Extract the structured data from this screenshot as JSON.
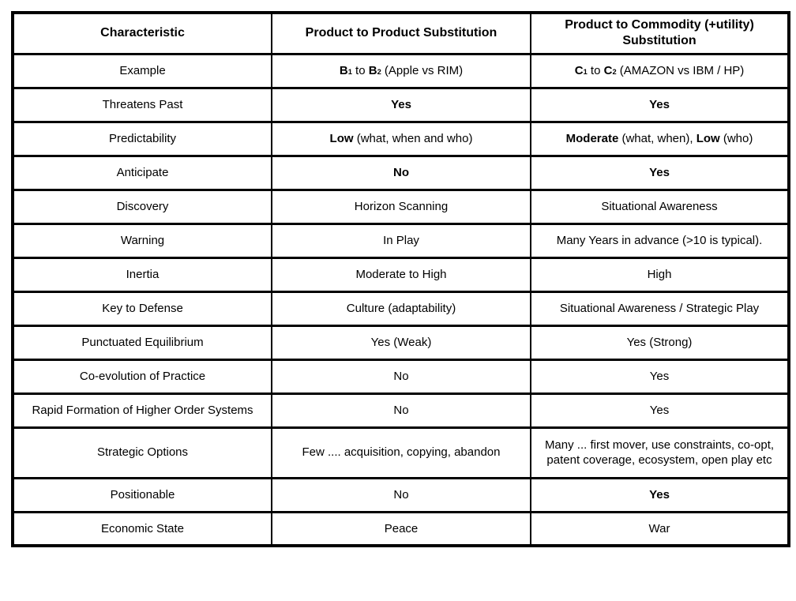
{
  "page": {
    "background_color": "#ffffff",
    "border_color": "#000000",
    "text_color": "#000000"
  },
  "table": {
    "headers": [
      "Characteristic",
      "Product to Product Substitution",
      "Product to Commodity (+utility) Substitution"
    ],
    "rows": [
      {
        "characteristic": "Example",
        "product_to_product": [
          {
            "t": "B",
            "b": true
          },
          {
            "t": "1",
            "b": true,
            "s": true
          },
          {
            "t": " to ",
            "b": false
          },
          {
            "t": "B",
            "b": true
          },
          {
            "t": "2",
            "b": true,
            "s": true
          },
          {
            "t": " (Apple vs RIM)",
            "b": false
          }
        ],
        "product_to_commodity": [
          {
            "t": "C",
            "b": true
          },
          {
            "t": "1",
            "b": true,
            "s": true
          },
          {
            "t": " to ",
            "b": false
          },
          {
            "t": "C",
            "b": true
          },
          {
            "t": "2",
            "b": true,
            "s": true
          },
          {
            "t": " (AMAZON vs IBM / HP)",
            "b": false
          }
        ]
      },
      {
        "characteristic": "Threatens Past",
        "product_to_product": [
          {
            "t": "Yes",
            "b": true
          }
        ],
        "product_to_commodity": [
          {
            "t": "Yes",
            "b": true
          }
        ]
      },
      {
        "characteristic": "Predictability",
        "product_to_product": [
          {
            "t": "Low",
            "b": true
          },
          {
            "t": " (what, when and who)",
            "b": false
          }
        ],
        "product_to_commodity": [
          {
            "t": "Moderate",
            "b": true
          },
          {
            "t": " (what, when), ",
            "b": false
          },
          {
            "t": "Low",
            "b": true
          },
          {
            "t": " (who)",
            "b": false
          }
        ]
      },
      {
        "characteristic": "Anticipate",
        "product_to_product": [
          {
            "t": "No",
            "b": true
          }
        ],
        "product_to_commodity": [
          {
            "t": "Yes",
            "b": true
          }
        ]
      },
      {
        "characteristic": "Discovery",
        "product_to_product": "Horizon Scanning",
        "product_to_commodity": "Situational Awareness"
      },
      {
        "characteristic": "Warning",
        "product_to_product": "In Play",
        "product_to_commodity": "Many Years in advance (>10 is typical)."
      },
      {
        "characteristic": "Inertia",
        "product_to_product": "Moderate to High",
        "product_to_commodity": "High"
      },
      {
        "characteristic": "Key to Defense",
        "product_to_product": "Culture (adaptability)",
        "product_to_commodity": "Situational Awareness / Strategic Play"
      },
      {
        "characteristic": "Punctuated Equilibrium",
        "product_to_product": "Yes (Weak)",
        "product_to_commodity": "Yes (Strong)"
      },
      {
        "characteristic": "Co-evolution of Practice",
        "product_to_product": "No",
        "product_to_commodity": "Yes"
      },
      {
        "characteristic": "Rapid Formation of Higher Order Systems",
        "product_to_product": "No",
        "product_to_commodity": "Yes"
      },
      {
        "characteristic": "Strategic Options",
        "product_to_product": "Few .... acquisition, copying, abandon",
        "product_to_commodity": "Many ... first mover, use constraints, co-opt, patent coverage, ecosystem, open play etc"
      },
      {
        "characteristic": "Positionable",
        "product_to_product": "No",
        "product_to_commodity": [
          {
            "t": "Yes",
            "b": true
          }
        ]
      },
      {
        "characteristic": "Economic State",
        "product_to_product": "Peace",
        "product_to_commodity": "War"
      }
    ]
  }
}
